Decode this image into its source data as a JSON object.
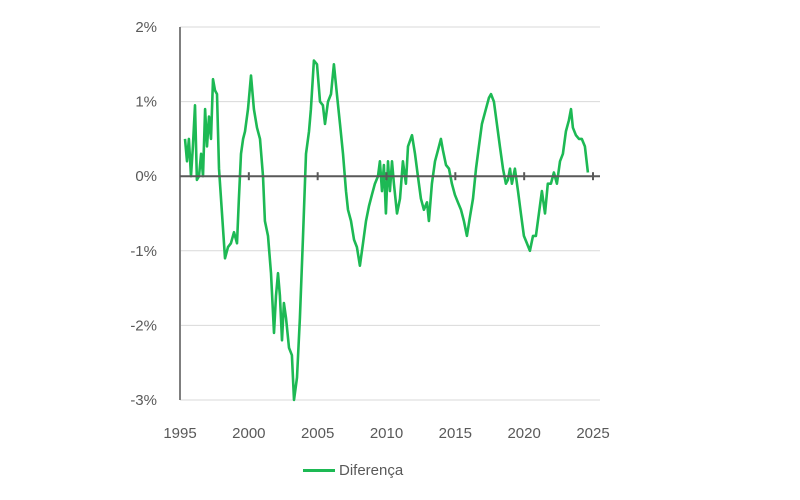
{
  "chart_data": {
    "type": "line",
    "title": "",
    "xlabel": "",
    "ylabel": "",
    "xlim": [
      1995,
      2025
    ],
    "ylim": [
      -3,
      2
    ],
    "grid": true,
    "legend_position": "bottom",
    "x_ticks": [
      "1995",
      "2000",
      "2005",
      "2010",
      "2015",
      "2020",
      "2025"
    ],
    "x_tick_values": [
      1995,
      2000,
      2005,
      2010,
      2015,
      2020,
      2025
    ],
    "y_ticks": [
      "2%",
      "1%",
      "0%",
      "-1%",
      "-2%",
      "-3%"
    ],
    "y_tick_values": [
      2,
      1,
      0,
      -1,
      -2,
      -3
    ],
    "series": [
      {
        "name": "Diferença",
        "color": "#1db954",
        "x": [
          1995.36,
          1995.51,
          1995.65,
          1995.8,
          1995.94,
          1996.09,
          1996.23,
          1996.38,
          1996.53,
          1996.67,
          1996.82,
          1996.96,
          1997.11,
          1997.25,
          1997.4,
          1997.54,
          1997.69,
          1997.83,
          1998.05,
          1998.27,
          1998.49,
          1998.7,
          1998.92,
          1999.14,
          1999.28,
          1999.43,
          1999.58,
          1999.72,
          1999.94,
          2000.16,
          2000.37,
          2000.59,
          2000.81,
          2001.03,
          2001.17,
          2001.39,
          2001.61,
          2001.83,
          2001.97,
          2002.12,
          2002.26,
          2002.41,
          2002.55,
          2002.7,
          2002.92,
          2003.13,
          2003.28,
          2003.5,
          2003.71,
          2003.93,
          2004.15,
          2004.37,
          2004.51,
          2004.73,
          2004.95,
          2005.17,
          2005.38,
          2005.53,
          2005.75,
          2005.97,
          2006.18,
          2006.4,
          2006.62,
          2006.84,
          2007.06,
          2007.2,
          2007.42,
          2007.64,
          2007.85,
          2008.07,
          2008.29,
          2008.51,
          2008.73,
          2008.94,
          2009.16,
          2009.38,
          2009.52,
          2009.67,
          2009.81,
          2009.96,
          2010.11,
          2010.25,
          2010.4,
          2010.54,
          2010.76,
          2010.98,
          2011.19,
          2011.41,
          2011.56,
          2011.85,
          2012.07,
          2012.28,
          2012.5,
          2012.72,
          2012.94,
          2013.08,
          2013.3,
          2013.52,
          2013.74,
          2013.95,
          2014.1,
          2014.32,
          2014.54,
          2014.75,
          2014.97,
          2015.19,
          2015.41,
          2015.62,
          2015.84,
          2016.06,
          2016.28,
          2016.5,
          2016.71,
          2016.93,
          2017.22,
          2017.44,
          2017.59,
          2017.8,
          2018.02,
          2018.24,
          2018.46,
          2018.67,
          2018.82,
          2018.97,
          2019.11,
          2019.33,
          2019.55,
          2019.76,
          2019.98,
          2020.2,
          2020.42,
          2020.64,
          2020.85,
          2021.07,
          2021.29,
          2021.51,
          2021.72,
          2021.94,
          2022.16,
          2022.38,
          2022.6,
          2022.81,
          2023.03,
          2023.25,
          2023.4,
          2023.54,
          2023.76,
          2023.98,
          2024.19,
          2024.41,
          2024.63
        ],
        "values": [
          0.5,
          0.2,
          0.5,
          0.0,
          0.4,
          0.95,
          -0.05,
          0.0,
          0.3,
          0.0,
          0.9,
          0.4,
          0.8,
          0.5,
          1.3,
          1.15,
          1.1,
          0.1,
          -0.5,
          -1.1,
          -0.95,
          -0.9,
          -0.75,
          -0.9,
          -0.3,
          0.3,
          0.5,
          0.6,
          0.9,
          1.35,
          0.9,
          0.65,
          0.5,
          0.0,
          -0.6,
          -0.8,
          -1.3,
          -2.1,
          -1.6,
          -1.3,
          -1.6,
          -2.2,
          -1.7,
          -1.9,
          -2.3,
          -2.4,
          -3.0,
          -2.7,
          -1.9,
          -0.85,
          0.3,
          0.6,
          0.9,
          1.55,
          1.5,
          1.0,
          0.95,
          0.7,
          1.0,
          1.1,
          1.5,
          1.1,
          0.7,
          0.3,
          -0.2,
          -0.45,
          -0.6,
          -0.85,
          -0.95,
          -1.2,
          -0.9,
          -0.6,
          -0.4,
          -0.25,
          -0.1,
          0.0,
          0.2,
          -0.2,
          0.15,
          -0.5,
          0.2,
          -0.2,
          0.2,
          -0.1,
          -0.5,
          -0.3,
          0.2,
          -0.1,
          0.4,
          0.55,
          0.3,
          0.0,
          -0.3,
          -0.45,
          -0.35,
          -0.6,
          -0.1,
          0.2,
          0.35,
          0.5,
          0.35,
          0.15,
          0.1,
          -0.1,
          -0.25,
          -0.35,
          -0.45,
          -0.6,
          -0.8,
          -0.55,
          -0.3,
          0.1,
          0.4,
          0.7,
          0.9,
          1.05,
          1.1,
          1.0,
          0.7,
          0.4,
          0.1,
          -0.1,
          -0.05,
          0.1,
          -0.1,
          0.1,
          -0.2,
          -0.5,
          -0.8,
          -0.9,
          -1.0,
          -0.8,
          -0.8,
          -0.5,
          -0.2,
          -0.5,
          -0.1,
          -0.1,
          0.05,
          -0.1,
          0.2,
          0.3,
          0.6,
          0.75,
          0.9,
          0.65,
          0.55,
          0.5,
          0.5,
          0.4,
          0.05
        ]
      }
    ]
  }
}
